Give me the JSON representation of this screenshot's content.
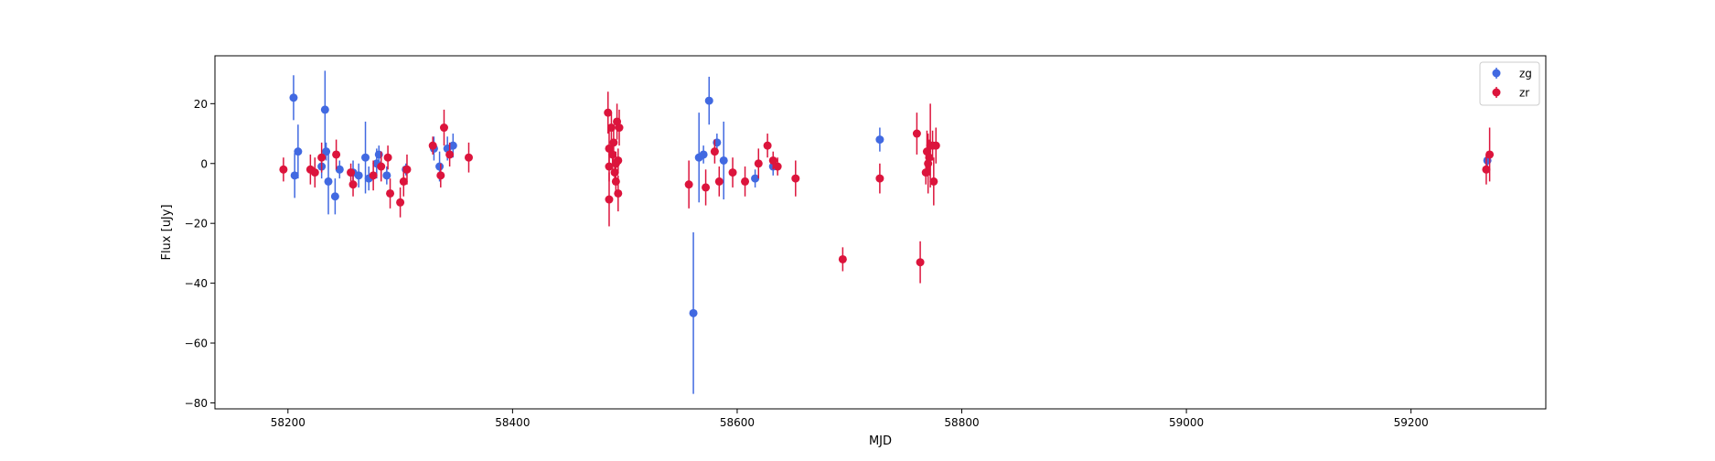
{
  "chart_data": {
    "type": "scatter",
    "title": "",
    "xlabel": "MJD",
    "ylabel": "Flux [uJy]",
    "xlim": [
      58135,
      59320
    ],
    "ylim": [
      -82,
      36
    ],
    "xticks": [
      58200,
      58400,
      58600,
      58800,
      59000,
      59200
    ],
    "xtick_labels": [
      "58200",
      "58400",
      "58600",
      "58800",
      "59000",
      "59200"
    ],
    "yticks": [
      -80,
      -60,
      -40,
      -20,
      0,
      20
    ],
    "ytick_labels": [
      "−80",
      "−60",
      "−40",
      "−20",
      "0",
      "20"
    ],
    "grid": false,
    "legend_position": "top-right",
    "series": [
      {
        "name": "zg",
        "color": "#4169e1",
        "points": [
          {
            "x": 58205,
            "y": 22,
            "err": 7.5
          },
          {
            "x": 58206,
            "y": -4,
            "err": 7.5
          },
          {
            "x": 58209,
            "y": 4,
            "err": 9
          },
          {
            "x": 58230,
            "y": -1,
            "err": 4
          },
          {
            "x": 58233,
            "y": 18,
            "err": 13
          },
          {
            "x": 58234,
            "y": 4,
            "err": 3
          },
          {
            "x": 58236,
            "y": -6,
            "err": 11
          },
          {
            "x": 58242,
            "y": -11,
            "err": 6
          },
          {
            "x": 58246,
            "y": -2,
            "err": 3
          },
          {
            "x": 58258,
            "y": -3,
            "err": 4
          },
          {
            "x": 58263,
            "y": -4,
            "err": 4
          },
          {
            "x": 58269,
            "y": 2,
            "err": 12
          },
          {
            "x": 58272,
            "y": -5,
            "err": 4
          },
          {
            "x": 58279,
            "y": 0,
            "err": 5
          },
          {
            "x": 58281,
            "y": 3,
            "err": 3
          },
          {
            "x": 58288,
            "y": -4,
            "err": 3
          },
          {
            "x": 58305,
            "y": -2,
            "err": 2
          },
          {
            "x": 58330,
            "y": 5,
            "err": 4
          },
          {
            "x": 58335,
            "y": -1,
            "err": 5
          },
          {
            "x": 58342,
            "y": 5,
            "err": 4
          },
          {
            "x": 58347,
            "y": 6,
            "err": 4
          },
          {
            "x": 58561,
            "y": -50,
            "err": 27
          },
          {
            "x": 58566,
            "y": 2,
            "err": 15
          },
          {
            "x": 58570,
            "y": 3,
            "err": 3
          },
          {
            "x": 58575,
            "y": 21,
            "err": 8
          },
          {
            "x": 58582,
            "y": 7,
            "err": 3
          },
          {
            "x": 58588,
            "y": 1,
            "err": 13
          },
          {
            "x": 58616,
            "y": -5,
            "err": 3
          },
          {
            "x": 58632,
            "y": -1,
            "err": 3
          },
          {
            "x": 58727,
            "y": 8,
            "err": 4
          },
          {
            "x": 59268,
            "y": 1,
            "err": 3
          }
        ]
      },
      {
        "name": "zr",
        "color": "#dc143c",
        "points": [
          {
            "x": 58196,
            "y": -2,
            "err": 4
          },
          {
            "x": 58220,
            "y": -2,
            "err": 5
          },
          {
            "x": 58224,
            "y": -3,
            "err": 5
          },
          {
            "x": 58230,
            "y": 2,
            "err": 5
          },
          {
            "x": 58243,
            "y": 3,
            "err": 5
          },
          {
            "x": 58256,
            "y": -3,
            "err": 3
          },
          {
            "x": 58258,
            "y": -7,
            "err": 4
          },
          {
            "x": 58276,
            "y": -4,
            "err": 5
          },
          {
            "x": 58283,
            "y": -1,
            "err": 5
          },
          {
            "x": 58289,
            "y": 2,
            "err": 4
          },
          {
            "x": 58291,
            "y": -10,
            "err": 5
          },
          {
            "x": 58300,
            "y": -13,
            "err": 5
          },
          {
            "x": 58303,
            "y": -6,
            "err": 5
          },
          {
            "x": 58306,
            "y": -2,
            "err": 5
          },
          {
            "x": 58329,
            "y": 6,
            "err": 3
          },
          {
            "x": 58336,
            "y": -4,
            "err": 4
          },
          {
            "x": 58339,
            "y": 12,
            "err": 6
          },
          {
            "x": 58344,
            "y": 3,
            "err": 4
          },
          {
            "x": 58361,
            "y": 2,
            "err": 5
          },
          {
            "x": 58485,
            "y": 17,
            "err": 7
          },
          {
            "x": 58486,
            "y": 5,
            "err": 6
          },
          {
            "x": 58486,
            "y": -1,
            "err": 5
          },
          {
            "x": 58486,
            "y": -12,
            "err": 9
          },
          {
            "x": 58488,
            "y": 12,
            "err": 5
          },
          {
            "x": 58489,
            "y": 3,
            "err": 5
          },
          {
            "x": 58490,
            "y": 7,
            "err": 6
          },
          {
            "x": 58491,
            "y": -3,
            "err": 4
          },
          {
            "x": 58492,
            "y": 0,
            "err": 4
          },
          {
            "x": 58492,
            "y": -6,
            "err": 5
          },
          {
            "x": 58493,
            "y": 14,
            "err": 6
          },
          {
            "x": 58494,
            "y": 1,
            "err": 4
          },
          {
            "x": 58494,
            "y": -10,
            "err": 6
          },
          {
            "x": 58495,
            "y": 12,
            "err": 6
          },
          {
            "x": 58557,
            "y": -7,
            "err": 8
          },
          {
            "x": 58572,
            "y": -8,
            "err": 6
          },
          {
            "x": 58580,
            "y": 4,
            "err": 4
          },
          {
            "x": 58584,
            "y": -6,
            "err": 5
          },
          {
            "x": 58596,
            "y": -3,
            "err": 5
          },
          {
            "x": 58607,
            "y": -6,
            "err": 5
          },
          {
            "x": 58619,
            "y": 0,
            "err": 5
          },
          {
            "x": 58627,
            "y": 6,
            "err": 4
          },
          {
            "x": 58632,
            "y": 1,
            "err": 3
          },
          {
            "x": 58636,
            "y": -1,
            "err": 3
          },
          {
            "x": 58652,
            "y": -5,
            "err": 6
          },
          {
            "x": 58694,
            "y": -32,
            "err": 4
          },
          {
            "x": 58727,
            "y": -5,
            "err": 5
          },
          {
            "x": 58760,
            "y": 10,
            "err": 7
          },
          {
            "x": 58763,
            "y": -33,
            "err": 7
          },
          {
            "x": 58768,
            "y": -3,
            "err": 4
          },
          {
            "x": 58769,
            "y": 4,
            "err": 7
          },
          {
            "x": 58770,
            "y": 0,
            "err": 10
          },
          {
            "x": 58771,
            "y": 2,
            "err": 6
          },
          {
            "x": 58772,
            "y": 6,
            "err": 14
          },
          {
            "x": 58774,
            "y": 6,
            "err": 5
          },
          {
            "x": 58775,
            "y": -6,
            "err": 8
          },
          {
            "x": 58777,
            "y": 6,
            "err": 6
          },
          {
            "x": 59267,
            "y": -2,
            "err": 5
          },
          {
            "x": 59270,
            "y": 3,
            "err": 9
          }
        ]
      }
    ]
  }
}
